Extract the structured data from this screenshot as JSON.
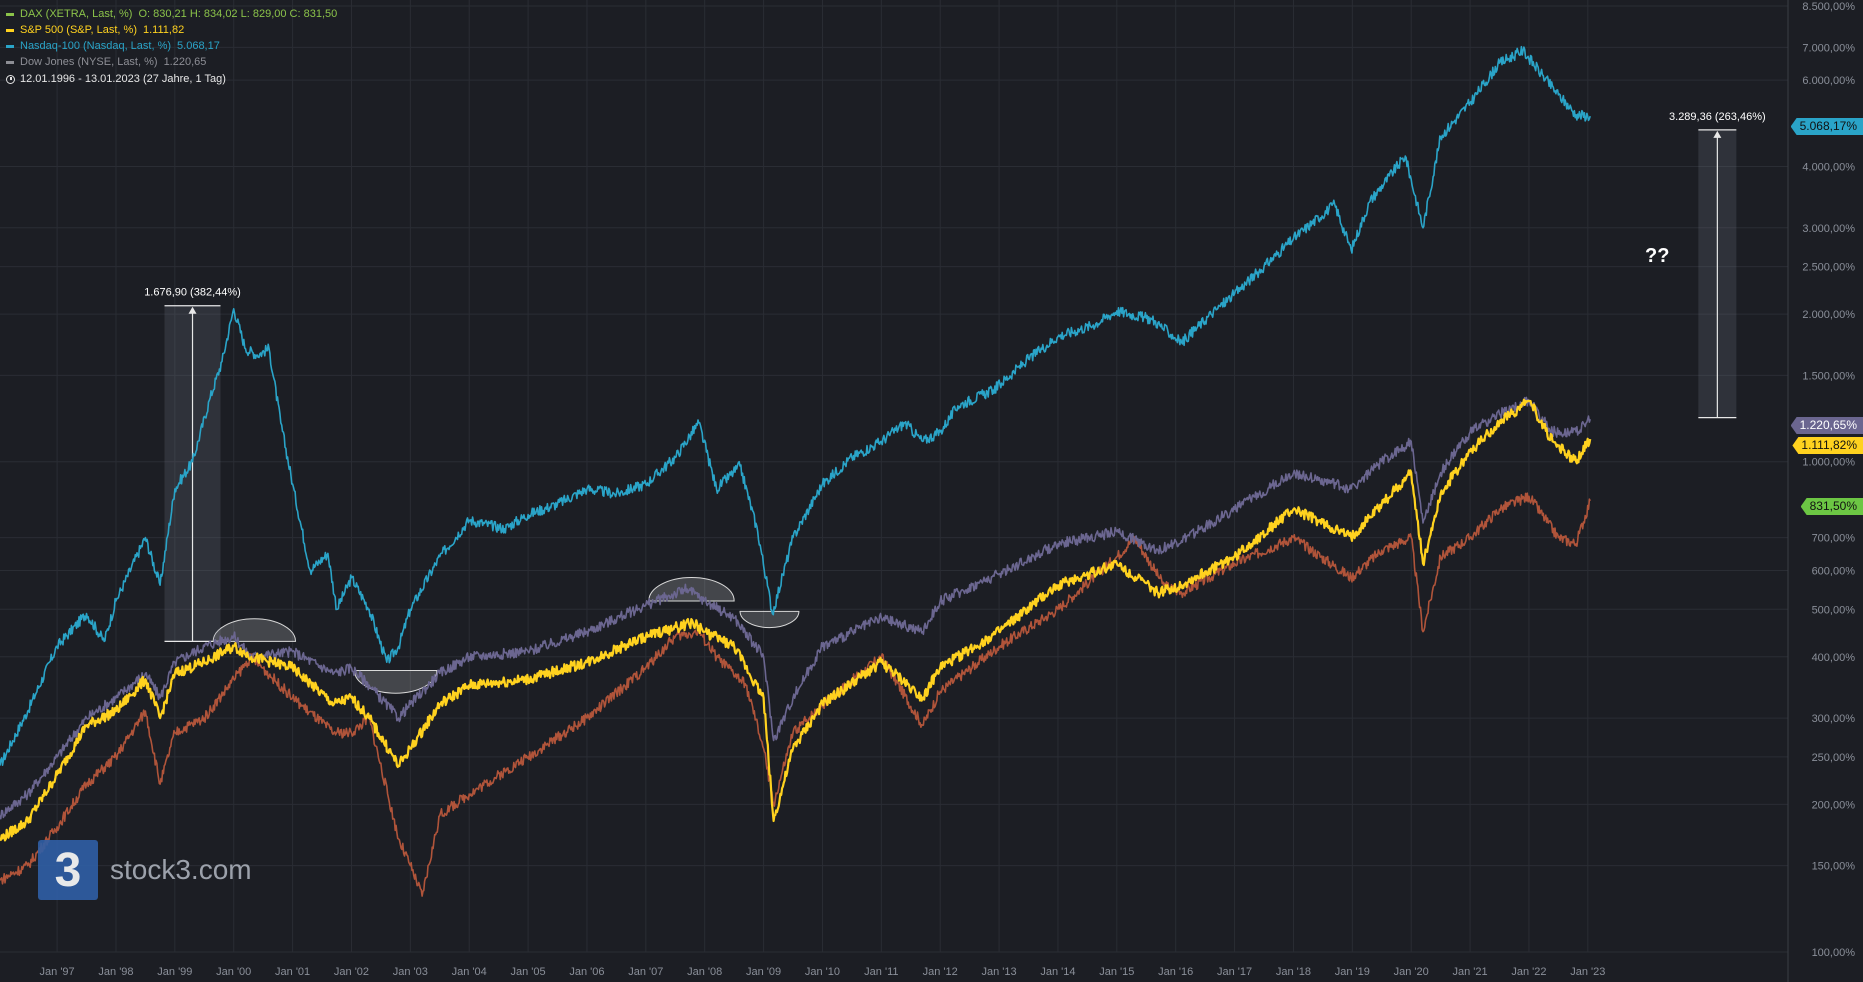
{
  "legend": {
    "dax": {
      "name": "DAX (XETRA, Last, %)",
      "ohlc": "O: 830,21  H: 834,02  L: 829,00  C: 831,50",
      "color": "#8bc34a"
    },
    "sp500": {
      "name": "S&P 500 (S&P, Last, %)",
      "value": "1.111,82",
      "color": "#ffd21f"
    },
    "nasdaq": {
      "name": "Nasdaq-100 (Nasdaq, Last, %)",
      "value": "5.068,17",
      "color": "#2aa4c8"
    },
    "dow": {
      "name": "Dow Jones (NYSE, Last, %)",
      "value": "1.220,65",
      "color": "#8d8e95"
    },
    "range": "12.01.1996 - 13.01.2023   (27 Jahre, 1 Tag)"
  },
  "logo": {
    "mark": "3",
    "text": "stock3.com"
  },
  "annotations": {
    "left_measure": "1.676,90 (382,44%)",
    "right_measure": "3.289,36 (263,46%)",
    "question": "??"
  },
  "price_tags": {
    "nasdaq": "5.068,17%",
    "dow": "1.220,65%",
    "sp500": "1.111,82%",
    "dax": "831,50%"
  },
  "colors": {
    "background": "#1c1e24",
    "grid": "#2a2d34",
    "nasdaq": "#2aa4c8",
    "sp500": "#ffd21f",
    "dow": "#6b6690",
    "dax": "#b0543a",
    "dax_tag": "#6cc644"
  },
  "chart_data": {
    "type": "line",
    "y_scale": "log",
    "ylabel": "",
    "ylim": [
      100,
      8500
    ],
    "y_ticks": [
      {
        "value": 8500,
        "label": "8.500,00%"
      },
      {
        "value": 7000,
        "label": "7.000,00%"
      },
      {
        "value": 6000,
        "label": "6.000,00%"
      },
      {
        "value": 4000,
        "label": "4.000,00%"
      },
      {
        "value": 3000,
        "label": "3.000,00%"
      },
      {
        "value": 2500,
        "label": "2.500,00%"
      },
      {
        "value": 2000,
        "label": "2.000,00%"
      },
      {
        "value": 1500,
        "label": "1.500,00%"
      },
      {
        "value": 1000,
        "label": "1.000,00%"
      },
      {
        "value": 700,
        "label": "700,00%"
      },
      {
        "value": 600,
        "label": "600,00%"
      },
      {
        "value": 500,
        "label": "500,00%"
      },
      {
        "value": 400,
        "label": "400,00%"
      },
      {
        "value": 300,
        "label": "300,00%"
      },
      {
        "value": 250,
        "label": "250,00%"
      },
      {
        "value": 200,
        "label": "200,00%"
      },
      {
        "value": 150,
        "label": "150,00%"
      },
      {
        "value": 100,
        "label": "100,00%"
      }
    ],
    "x_ticks": [
      {
        "value": 1997.0,
        "label": "Jan '97"
      },
      {
        "value": 1998.0,
        "label": "Jan '98"
      },
      {
        "value": 1999.0,
        "label": "Jan '99"
      },
      {
        "value": 2000.0,
        "label": "Jan '00"
      },
      {
        "value": 2001.0,
        "label": "Jan '01"
      },
      {
        "value": 2002.0,
        "label": "Jan '02"
      },
      {
        "value": 2003.0,
        "label": "Jan '03"
      },
      {
        "value": 2004.0,
        "label": "Jan '04"
      },
      {
        "value": 2005.0,
        "label": "Jan '05"
      },
      {
        "value": 2006.0,
        "label": "Jan '06"
      },
      {
        "value": 2007.0,
        "label": "Jan '07"
      },
      {
        "value": 2008.0,
        "label": "Jan '08"
      },
      {
        "value": 2009.0,
        "label": "Jan '09"
      },
      {
        "value": 2010.0,
        "label": "Jan '10"
      },
      {
        "value": 2011.0,
        "label": "Jan '11"
      },
      {
        "value": 2012.0,
        "label": "Jan '12"
      },
      {
        "value": 2013.0,
        "label": "Jan '13"
      },
      {
        "value": 2014.0,
        "label": "Jan '14"
      },
      {
        "value": 2015.0,
        "label": "Jan '15"
      },
      {
        "value": 2016.0,
        "label": "Jan '16"
      },
      {
        "value": 2017.0,
        "label": "Jan '17"
      },
      {
        "value": 2018.0,
        "label": "Jan '18"
      },
      {
        "value": 2019.0,
        "label": "Jan '19"
      },
      {
        "value": 2020.0,
        "label": "Jan '20"
      },
      {
        "value": 2021.0,
        "label": "Jan '21"
      },
      {
        "value": 2022.0,
        "label": "Jan '22"
      },
      {
        "value": 2023.0,
        "label": "Jan '23"
      }
    ],
    "xlim": [
      1996.03,
      2026.4
    ],
    "series": [
      {
        "name": "Nasdaq-100 (Nasdaq, Last, %)",
        "color": "#2aa4c8",
        "x": [
          1996.03,
          1996.5,
          1997.0,
          1997.5,
          1997.8,
          1998.0,
          1998.5,
          1998.75,
          1999.0,
          1999.3,
          1999.6,
          1999.8,
          2000.0,
          2000.2,
          2000.4,
          2000.6,
          2000.8,
          2001.0,
          2001.3,
          2001.6,
          2001.75,
          2002.0,
          2002.3,
          2002.6,
          2002.8,
          2003.0,
          2003.5,
          2004.0,
          2004.6,
          2005.0,
          2005.5,
          2006.0,
          2006.5,
          2007.0,
          2007.5,
          2007.9,
          2008.2,
          2008.6,
          2008.9,
          2009.15,
          2009.5,
          2010.0,
          2010.5,
          2011.0,
          2011.4,
          2011.7,
          2012.0,
          2012.3,
          2012.9,
          2013.5,
          2014.0,
          2014.6,
          2015.0,
          2015.6,
          2016.1,
          2016.6,
          2017.0,
          2017.5,
          2018.0,
          2018.7,
          2018.98,
          2019.3,
          2019.9,
          2020.2,
          2020.5,
          2021.0,
          2021.5,
          2021.9,
          2022.2,
          2022.5,
          2022.8,
          2023.04
        ],
        "values": [
          240,
          310,
          420,
          490,
          430,
          520,
          700,
          560,
          880,
          1000,
          1350,
          1600,
          2050,
          1700,
          1650,
          1700,
          1200,
          900,
          600,
          650,
          500,
          580,
          500,
          390,
          420,
          500,
          640,
          760,
          730,
          780,
          820,
          880,
          860,
          900,
          1020,
          1200,
          880,
          980,
          720,
          490,
          700,
          900,
          1020,
          1100,
          1200,
          1100,
          1150,
          1300,
          1400,
          1620,
          1800,
          1900,
          2030,
          1950,
          1750,
          2000,
          2200,
          2500,
          2850,
          3350,
          2700,
          3400,
          4200,
          3000,
          4600,
          5400,
          6500,
          6900,
          6200,
          5600,
          5100,
          5068
        ]
      },
      {
        "name": "Dow Jones (NYSE, Last, %)",
        "color": "#6b6690",
        "x": [
          1996.03,
          1996.5,
          1997.0,
          1997.5,
          1998.0,
          1998.5,
          1998.75,
          1999.0,
          1999.5,
          2000.0,
          2000.3,
          2001.0,
          2001.7,
          2002.0,
          2002.3,
          2002.8,
          2003.0,
          2003.5,
          2004.0,
          2005.0,
          2006.0,
          2007.0,
          2007.7,
          2008.0,
          2008.5,
          2009.0,
          2009.17,
          2009.5,
          2010.0,
          2011.0,
          2011.7,
          2012.0,
          2013.0,
          2014.0,
          2015.0,
          2015.7,
          2016.1,
          2017.0,
          2018.0,
          2018.98,
          2019.5,
          2020.0,
          2020.2,
          2020.5,
          2021.0,
          2021.5,
          2022.0,
          2022.4,
          2022.8,
          2023.04
        ],
        "values": [
          190,
          210,
          250,
          300,
          330,
          370,
          330,
          390,
          420,
          440,
          400,
          410,
          370,
          380,
          350,
          300,
          320,
          370,
          400,
          410,
          450,
          510,
          550,
          520,
          480,
          400,
          270,
          330,
          420,
          480,
          450,
          520,
          590,
          680,
          720,
          660,
          690,
          800,
          950,
          880,
          1000,
          1100,
          750,
          950,
          1150,
          1250,
          1330,
          1150,
          1150,
          1221
        ]
      },
      {
        "name": "S&P 500 (S&P, Last, %)",
        "color": "#ffd21f",
        "x": [
          1996.03,
          1996.5,
          1997.0,
          1997.5,
          1998.0,
          1998.5,
          1998.75,
          1999.0,
          1999.5,
          2000.0,
          2000.3,
          2001.0,
          2001.7,
          2002.0,
          2002.3,
          2002.8,
          2003.0,
          2003.5,
          2004.0,
          2005.0,
          2006.0,
          2007.0,
          2007.8,
          2008.0,
          2008.5,
          2009.0,
          2009.17,
          2009.5,
          2010.0,
          2011.0,
          2011.7,
          2012.0,
          2013.0,
          2014.0,
          2015.0,
          2015.7,
          2016.1,
          2017.0,
          2018.0,
          2018.98,
          2019.5,
          2020.0,
          2020.2,
          2020.5,
          2021.0,
          2021.5,
          2022.0,
          2022.4,
          2022.8,
          2023.04
        ],
        "values": [
          170,
          185,
          230,
          290,
          310,
          360,
          300,
          370,
          390,
          420,
          400,
          380,
          320,
          330,
          300,
          240,
          260,
          320,
          350,
          360,
          390,
          440,
          470,
          450,
          420,
          330,
          185,
          260,
          320,
          390,
          330,
          380,
          450,
          560,
          620,
          540,
          560,
          640,
          800,
          700,
          820,
          950,
          620,
          860,
          1050,
          1200,
          1330,
          1100,
          1000,
          1112
        ]
      },
      {
        "name": "DAX (XETRA, Last, %)",
        "color": "#b0543a",
        "x": [
          1996.03,
          1996.5,
          1997.0,
          1997.5,
          1998.0,
          1998.5,
          1998.75,
          1999.0,
          1999.5,
          2000.0,
          2000.3,
          2001.0,
          2001.7,
          2002.0,
          2002.3,
          2002.8,
          2003.0,
          2003.2,
          2003.5,
          2004.0,
          2005.0,
          2006.0,
          2007.0,
          2007.5,
          2007.9,
          2008.2,
          2008.7,
          2009.0,
          2009.17,
          2009.5,
          2010.0,
          2011.0,
          2011.7,
          2012.0,
          2013.0,
          2014.0,
          2015.0,
          2015.3,
          2015.8,
          2016.1,
          2017.0,
          2018.0,
          2018.98,
          2019.5,
          2020.0,
          2020.2,
          2020.5,
          2021.0,
          2021.5,
          2022.0,
          2022.5,
          2022.8,
          2023.04
        ],
        "values": [
          140,
          150,
          180,
          220,
          250,
          310,
          220,
          280,
          300,
          360,
          400,
          330,
          280,
          280,
          300,
          170,
          150,
          130,
          190,
          210,
          250,
          300,
          380,
          440,
          450,
          400,
          350,
          260,
          200,
          280,
          320,
          400,
          290,
          340,
          420,
          500,
          640,
          700,
          560,
          540,
          620,
          700,
          580,
          660,
          700,
          450,
          640,
          700,
          800,
          850,
          700,
          680,
          832
        ]
      }
    ]
  }
}
